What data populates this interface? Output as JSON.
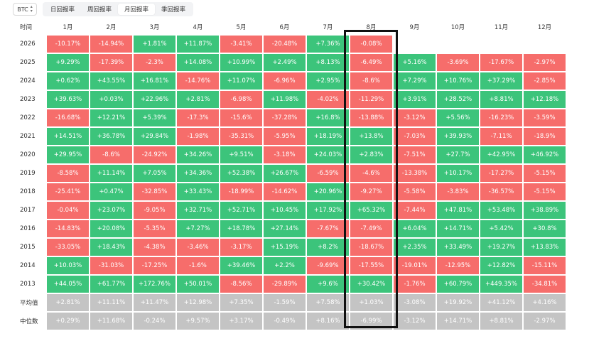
{
  "asset_selector": {
    "value": "BTC",
    "icon": "chevron-updown-icon"
  },
  "tabs": [
    {
      "label": "日回报率",
      "active": false
    },
    {
      "label": "周回报率",
      "active": false
    },
    {
      "label": "月回报率",
      "active": true
    },
    {
      "label": "季回报率",
      "active": false
    }
  ],
  "table": {
    "corner_label": "时间",
    "columns": [
      "1月",
      "2月",
      "3月",
      "4月",
      "5月",
      "6月",
      "7月",
      "8月",
      "9月",
      "10月",
      "11月",
      "12月"
    ],
    "rows": [
      {
        "label": "2026",
        "values": [
          "-10.17%",
          "-14.94%",
          "+1.81%",
          "+11.87%",
          "-3.41%",
          "-20.48%",
          "+7.36%",
          "-0.08%",
          "",
          "",
          "",
          ""
        ]
      },
      {
        "label": "2025",
        "values": [
          "+9.29%",
          "-17.39%",
          "-2.3%",
          "+14.08%",
          "+10.99%",
          "+2.49%",
          "+8.13%",
          "-6.49%",
          "+5.16%",
          "-3.69%",
          "-17.67%",
          "-2.97%"
        ]
      },
      {
        "label": "2024",
        "values": [
          "+0.62%",
          "+43.55%",
          "+16.81%",
          "-14.76%",
          "+11.07%",
          "-6.96%",
          "+2.95%",
          "-8.6%",
          "+7.29%",
          "+10.76%",
          "+37.29%",
          "-2.85%"
        ]
      },
      {
        "label": "2023",
        "values": [
          "+39.63%",
          "+0.03%",
          "+22.96%",
          "+2.81%",
          "-6.98%",
          "+11.98%",
          "-4.02%",
          "-11.29%",
          "+3.91%",
          "+28.52%",
          "+8.81%",
          "+12.18%"
        ]
      },
      {
        "label": "2022",
        "values": [
          "-16.68%",
          "+12.21%",
          "+5.39%",
          "-17.3%",
          "-15.6%",
          "-37.28%",
          "+16.8%",
          "-13.88%",
          "-3.12%",
          "+5.56%",
          "-16.23%",
          "-3.59%"
        ]
      },
      {
        "label": "2021",
        "values": [
          "+14.51%",
          "+36.78%",
          "+29.84%",
          "-1.98%",
          "-35.31%",
          "-5.95%",
          "+18.19%",
          "+13.8%",
          "-7.03%",
          "+39.93%",
          "-7.11%",
          "-18.9%"
        ]
      },
      {
        "label": "2020",
        "values": [
          "+29.95%",
          "-8.6%",
          "-24.92%",
          "+34.26%",
          "+9.51%",
          "-3.18%",
          "+24.03%",
          "+2.83%",
          "-7.51%",
          "+27.7%",
          "+42.95%",
          "+46.92%"
        ]
      },
      {
        "label": "2019",
        "values": [
          "-8.58%",
          "+11.14%",
          "+7.05%",
          "+34.36%",
          "+52.38%",
          "+26.67%",
          "-6.59%",
          "-4.6%",
          "-13.38%",
          "+10.17%",
          "-17.27%",
          "-5.15%"
        ]
      },
      {
        "label": "2018",
        "values": [
          "-25.41%",
          "+0.47%",
          "-32.85%",
          "+33.43%",
          "-18.99%",
          "-14.62%",
          "+20.96%",
          "-9.27%",
          "-5.58%",
          "-3.83%",
          "-36.57%",
          "-5.15%"
        ]
      },
      {
        "label": "2017",
        "values": [
          "-0.04%",
          "+23.07%",
          "-9.05%",
          "+32.71%",
          "+52.71%",
          "+10.45%",
          "+17.92%",
          "+65.32%",
          "-7.44%",
          "+47.81%",
          "+53.48%",
          "+38.89%"
        ]
      },
      {
        "label": "2016",
        "values": [
          "-14.83%",
          "+20.08%",
          "-5.35%",
          "+7.27%",
          "+18.78%",
          "+27.14%",
          "-7.67%",
          "-7.49%",
          "+6.04%",
          "+14.71%",
          "+5.42%",
          "+30.8%"
        ]
      },
      {
        "label": "2015",
        "values": [
          "-33.05%",
          "+18.43%",
          "-4.38%",
          "-3.46%",
          "-3.17%",
          "+15.19%",
          "+8.2%",
          "-18.67%",
          "+2.35%",
          "+33.49%",
          "+19.27%",
          "+13.83%"
        ]
      },
      {
        "label": "2014",
        "values": [
          "+10.03%",
          "-31.03%",
          "-17.25%",
          "-1.6%",
          "+39.46%",
          "+2.2%",
          "-9.69%",
          "-17.55%",
          "-19.01%",
          "-12.95%",
          "+12.82%",
          "-15.11%"
        ]
      },
      {
        "label": "2013",
        "values": [
          "+44.05%",
          "+61.77%",
          "+172.76%",
          "+50.01%",
          "-8.56%",
          "-29.89%",
          "+9.6%",
          "+30.42%",
          "-1.76%",
          "+60.79%",
          "+449.35%",
          "-34.81%"
        ]
      }
    ],
    "summary_rows": [
      {
        "label": "平均值",
        "values": [
          "+2.81%",
          "+11.11%",
          "+11.47%",
          "+12.98%",
          "+7.35%",
          "-1.59%",
          "+7.58%",
          "+1.03%",
          "-3.08%",
          "+19.92%",
          "+41.12%",
          "+4.16%"
        ]
      },
      {
        "label": "中位数",
        "values": [
          "+0.29%",
          "+11.68%",
          "-0.24%",
          "+9.57%",
          "+3.17%",
          "-0.49%",
          "+8.16%",
          "-6.99%",
          "-3.12%",
          "+14.71%",
          "+8.81%",
          "-2.97%"
        ]
      }
    ]
  },
  "colors": {
    "positive": "#3cc47b",
    "negative": "#f66d6b",
    "summary": "#c4c4c4",
    "highlight": "#111111"
  }
}
